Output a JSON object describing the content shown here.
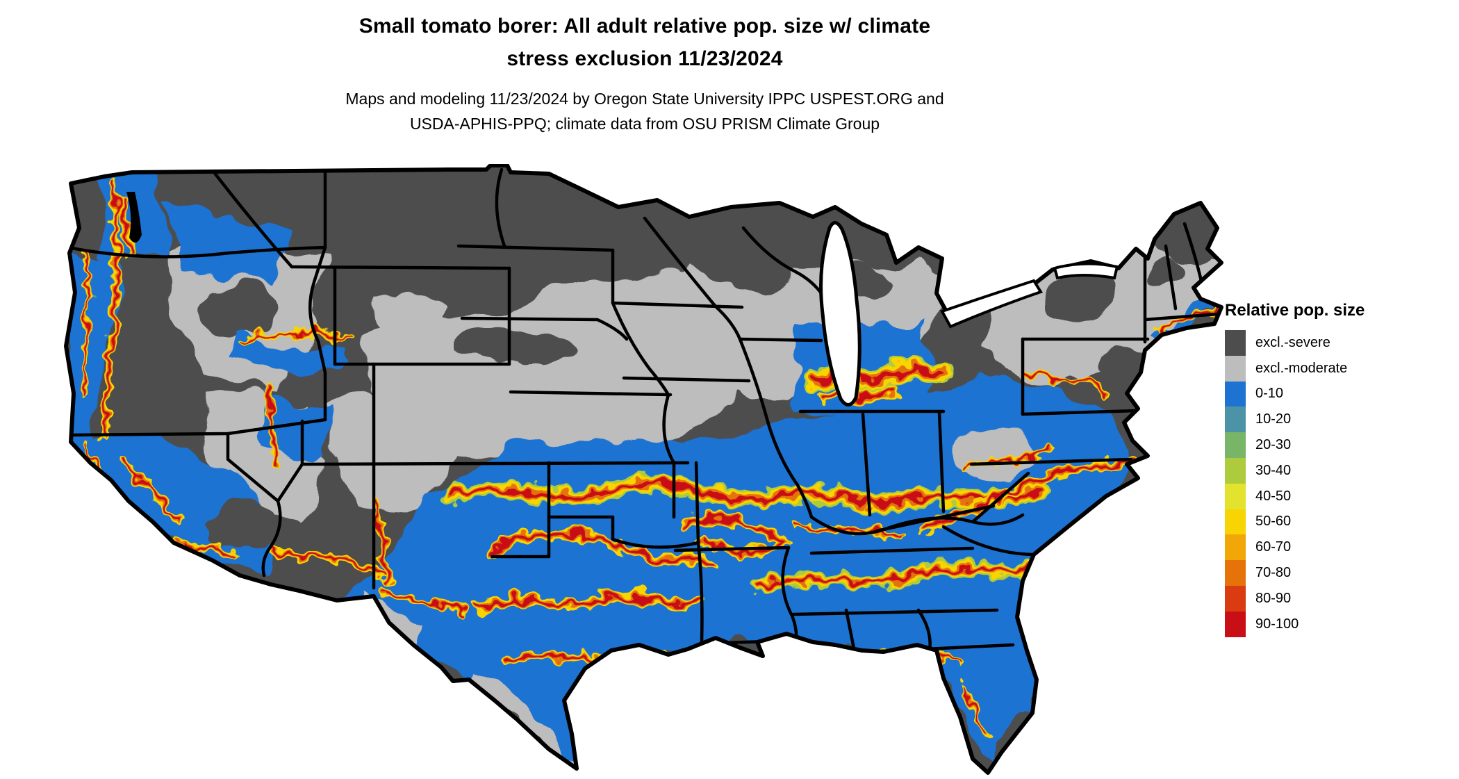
{
  "page": {
    "background": "#ffffff"
  },
  "title": {
    "line1": "Small tomato borer: All adult relative pop. size w/ climate",
    "line2": "stress exclusion 11/23/2024"
  },
  "subtitle": {
    "line1": "Maps and modeling 11/23/2024 by Oregon State University IPPC USPEST.ORG and",
    "line2": "USDA-APHIS-PPQ; climate data from OSU PRISM Climate Group"
  },
  "legend": {
    "title": "Relative pop. size",
    "entries": [
      {
        "key": "excl_severe",
        "label": "excl.-severe",
        "color": "#4d4d4d"
      },
      {
        "key": "excl_moderate",
        "label": "excl.-moderate",
        "color": "#bdbdbd"
      },
      {
        "key": "b0_10",
        "label": "0-10",
        "color": "#1e73d2"
      },
      {
        "key": "b10_20",
        "label": "10-20",
        "color": "#4d93a8"
      },
      {
        "key": "b20_30",
        "label": "20-30",
        "color": "#78b566"
      },
      {
        "key": "b30_40",
        "label": "30-40",
        "color": "#aecb3e"
      },
      {
        "key": "b40_50",
        "label": "40-50",
        "color": "#e3e32d"
      },
      {
        "key": "b50_60",
        "label": "50-60",
        "color": "#f8d404"
      },
      {
        "key": "b60_70",
        "label": "60-70",
        "color": "#f1a707"
      },
      {
        "key": "b70_80",
        "label": "70-80",
        "color": "#e57309"
      },
      {
        "key": "b80_90",
        "label": "80-90",
        "color": "#da3b10"
      },
      {
        "key": "b90_100",
        "label": "90-100",
        "color": "#c90f16"
      }
    ]
  },
  "map": {
    "state_border_color": "#000000",
    "coast_outline_color": "#000000",
    "water_color": "#ffffff"
  }
}
